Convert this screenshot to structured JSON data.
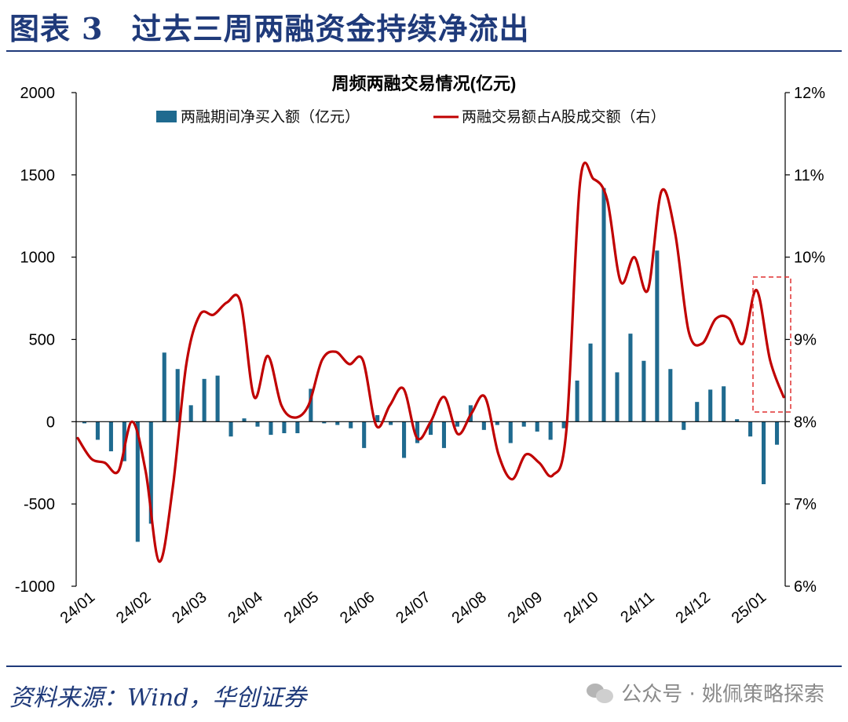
{
  "header": {
    "label": "图表",
    "number": "3",
    "title": "过去三周两融资金持续净流出"
  },
  "footer": {
    "source": "资料来源：Wind，华创证券",
    "watermark": "公众号 · 姚佩策略探索"
  },
  "colors": {
    "title": "#1f3a7a",
    "bar": "#1f6a8f",
    "line": "#c00000",
    "highlight": "#e03030"
  },
  "chart_data": {
    "type": "bar+line",
    "title": "周频两融交易情况(亿元)",
    "legend": [
      "两融期间净买入额（亿元）",
      "两融交易额占A股成交额（右）"
    ],
    "left_axis": {
      "min": -1000,
      "max": 2000,
      "ticks": [
        "2000",
        "1500",
        "1000",
        "500",
        "0",
        "-500",
        "-1000"
      ]
    },
    "right_axis": {
      "min": 6,
      "max": 12,
      "ticks": [
        "12%",
        "11%",
        "10%",
        "9%",
        "8%",
        "7%",
        "6%"
      ]
    },
    "x_labels": [
      "24/01",
      "24/02",
      "24/03",
      "24/04",
      "24/05",
      "24/06",
      "24/07",
      "24/08",
      "24/09",
      "24/10",
      "24/11",
      "24/12",
      "25/01"
    ],
    "series": [
      {
        "name": "两融期间净买入额（亿元）",
        "axis": "left",
        "values": [
          -10,
          -110,
          -180,
          -240,
          -730,
          -620,
          420,
          320,
          100,
          260,
          280,
          -90,
          20,
          -30,
          -80,
          -70,
          -70,
          200,
          -10,
          -20,
          -40,
          -160,
          40,
          -20,
          -220,
          -130,
          -80,
          -160,
          -30,
          100,
          -50,
          -20,
          -130,
          -30,
          -60,
          -110,
          -40,
          250,
          475,
          1420,
          300,
          535,
          370,
          1040,
          320,
          -50,
          120,
          195,
          215,
          15,
          -90,
          -380,
          -140
        ]
      },
      {
        "name": "两融交易额占A股成交额（右）",
        "axis": "right",
        "values": [
          7.8,
          7.55,
          7.5,
          7.4,
          8.0,
          7.4,
          6.3,
          7.2,
          8.7,
          9.3,
          9.3,
          9.45,
          9.45,
          8.3,
          8.8,
          8.2,
          8.05,
          8.2,
          8.75,
          8.85,
          8.7,
          8.75,
          7.95,
          8.2,
          8.4,
          7.8,
          8.0,
          8.3,
          7.85,
          8.1,
          8.3,
          7.6,
          7.3,
          7.6,
          7.5,
          7.35,
          7.9,
          10.9,
          10.95,
          10.7,
          9.7,
          10.0,
          9.6,
          10.8,
          10.3,
          9.1,
          8.95,
          9.25,
          9.25,
          8.95,
          9.6,
          8.75,
          8.3
        ]
      }
    ],
    "annotation": "dashed red box highlighting the final three weeks"
  }
}
